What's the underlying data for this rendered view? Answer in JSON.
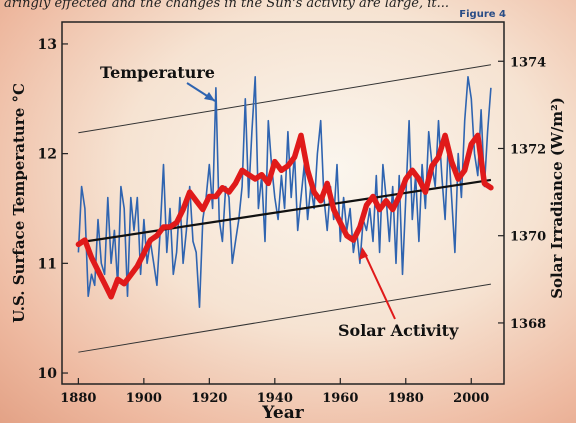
{
  "caption": "aringly effected and the changes in the Sun's activity are large, it...",
  "figure_label": "Figure 4",
  "chart_data": {
    "type": "line",
    "xlabel": "Year",
    "ylabel_left": "U.S. Surface Temperature °C",
    "ylabel_right": "Solar Irradiance (W/m²)",
    "xlim": [
      1875,
      2010
    ],
    "ylim_left": [
      9.9,
      13.2
    ],
    "ylim_right": [
      1366.6,
      1374.9
    ],
    "x_ticks": [
      1880,
      1900,
      1920,
      1940,
      1960,
      1980,
      2000
    ],
    "y_ticks_left": [
      10,
      11,
      12,
      13
    ],
    "y_ticks_right": [
      1368,
      1370,
      1372,
      1374
    ],
    "annotations": [
      "Temperature",
      "Solar Activity"
    ],
    "colors": {
      "temperature": "#2f64b0",
      "solar": "#e01a1a",
      "trend": "#111111",
      "band": "#333333"
    },
    "temperature_series": {
      "x": [
        1880,
        1881,
        1882,
        1883,
        1884,
        1885,
        1886,
        1887,
        1888,
        1889,
        1890,
        1891,
        1892,
        1893,
        1894,
        1895,
        1896,
        1897,
        1898,
        1899,
        1900,
        1901,
        1902,
        1903,
        1904,
        1905,
        1906,
        1907,
        1908,
        1909,
        1910,
        1911,
        1912,
        1913,
        1914,
        1915,
        1916,
        1917,
        1918,
        1919,
        1920,
        1921,
        1922,
        1923,
        1924,
        1925,
        1926,
        1927,
        1928,
        1929,
        1930,
        1931,
        1932,
        1933,
        1934,
        1935,
        1936,
        1937,
        1938,
        1939,
        1940,
        1941,
        1942,
        1943,
        1944,
        1945,
        1946,
        1947,
        1948,
        1949,
        1950,
        1951,
        1952,
        1953,
        1954,
        1955,
        1956,
        1957,
        1958,
        1959,
        1960,
        1961,
        1962,
        1963,
        1964,
        1965,
        1966,
        1967,
        1968,
        1969,
        1970,
        1971,
        1972,
        1973,
        1974,
        1975,
        1976,
        1977,
        1978,
        1979,
        1980,
        1981,
        1982,
        1983,
        1984,
        1985,
        1986,
        1987,
        1988,
        1989,
        1990,
        1991,
        1992,
        1993,
        1994,
        1995,
        1996,
        1997,
        1998,
        1999,
        2000,
        2001,
        2002,
        2003,
        2004,
        2005,
        2006
      ],
      "y": [
        11.1,
        11.7,
        11.5,
        10.7,
        10.9,
        10.8,
        11.4,
        11.0,
        10.9,
        11.6,
        11.0,
        11.3,
        10.8,
        11.7,
        11.5,
        10.7,
        11.6,
        11.3,
        11.6,
        10.9,
        11.4,
        11.0,
        11.2,
        11.0,
        10.8,
        11.3,
        11.9,
        11.1,
        11.5,
        10.9,
        11.1,
        11.6,
        11.0,
        11.3,
        11.7,
        11.2,
        11.1,
        10.6,
        11.4,
        11.6,
        11.9,
        11.5,
        12.6,
        11.4,
        11.2,
        11.7,
        11.6,
        11.0,
        11.2,
        11.4,
        11.7,
        12.5,
        11.6,
        12.2,
        12.7,
        11.5,
        11.8,
        11.2,
        12.3,
        11.9,
        11.6,
        11.4,
        11.8,
        11.5,
        12.2,
        11.6,
        12.0,
        11.3,
        11.6,
        11.9,
        11.4,
        11.7,
        11.5,
        12.0,
        12.3,
        11.6,
        11.3,
        11.7,
        11.4,
        11.9,
        11.2,
        11.6,
        11.3,
        11.5,
        11.1,
        11.3,
        11.0,
        11.4,
        11.3,
        11.5,
        11.2,
        11.8,
        11.1,
        11.9,
        11.6,
        11.2,
        11.7,
        11.0,
        11.8,
        10.9,
        11.6,
        12.3,
        11.4,
        11.8,
        11.2,
        11.9,
        11.5,
        12.2,
        11.9,
        11.7,
        12.3,
        11.8,
        11.4,
        12.1,
        11.6,
        11.1,
        12.0,
        11.6,
        12.3,
        12.7,
        12.5,
        12.0,
        11.8,
        12.4,
        11.7,
        12.2,
        12.6
      ]
    },
    "solar_series": {
      "x": [
        1880,
        1882,
        1884,
        1886,
        1888,
        1890,
        1892,
        1894,
        1896,
        1898,
        1900,
        1902,
        1904,
        1906,
        1908,
        1910,
        1912,
        1914,
        1916,
        1918,
        1920,
        1922,
        1924,
        1926,
        1928,
        1930,
        1932,
        1934,
        1936,
        1938,
        1940,
        1942,
        1944,
        1946,
        1948,
        1950,
        1952,
        1954,
        1956,
        1958,
        1960,
        1962,
        1964,
        1966,
        1968,
        1970,
        1972,
        1974,
        1976,
        1978,
        1980,
        1982,
        1984,
        1986,
        1988,
        1990,
        1992,
        1994,
        1996,
        1998,
        2000,
        2002,
        2004,
        2006
      ],
      "y": [
        1369.8,
        1369.9,
        1369.5,
        1369.2,
        1368.9,
        1368.6,
        1369.0,
        1368.9,
        1369.1,
        1369.3,
        1369.6,
        1369.9,
        1370.0,
        1370.2,
        1370.2,
        1370.3,
        1370.6,
        1371.0,
        1370.8,
        1370.6,
        1370.9,
        1370.9,
        1371.1,
        1371.0,
        1371.2,
        1371.5,
        1371.4,
        1371.3,
        1371.4,
        1371.2,
        1371.7,
        1371.5,
        1371.6,
        1371.8,
        1372.3,
        1371.5,
        1371.0,
        1370.8,
        1371.2,
        1370.6,
        1370.3,
        1370.0,
        1369.9,
        1370.2,
        1370.7,
        1370.9,
        1370.6,
        1370.8,
        1370.6,
        1370.9,
        1371.3,
        1371.5,
        1371.3,
        1371.0,
        1371.6,
        1371.8,
        1372.3,
        1371.7,
        1371.3,
        1371.5,
        1372.1,
        1372.3,
        1371.2,
        1371.1
      ]
    },
    "trend_line": {
      "x": [
        1880,
        2006
      ],
      "y": [
        11.19,
        11.76
      ]
    },
    "band_upper": {
      "x": [
        1880,
        2006
      ],
      "y": [
        12.19,
        12.81
      ]
    },
    "band_lower": {
      "x": [
        1880,
        2006
      ],
      "y": [
        10.19,
        10.81
      ]
    }
  }
}
